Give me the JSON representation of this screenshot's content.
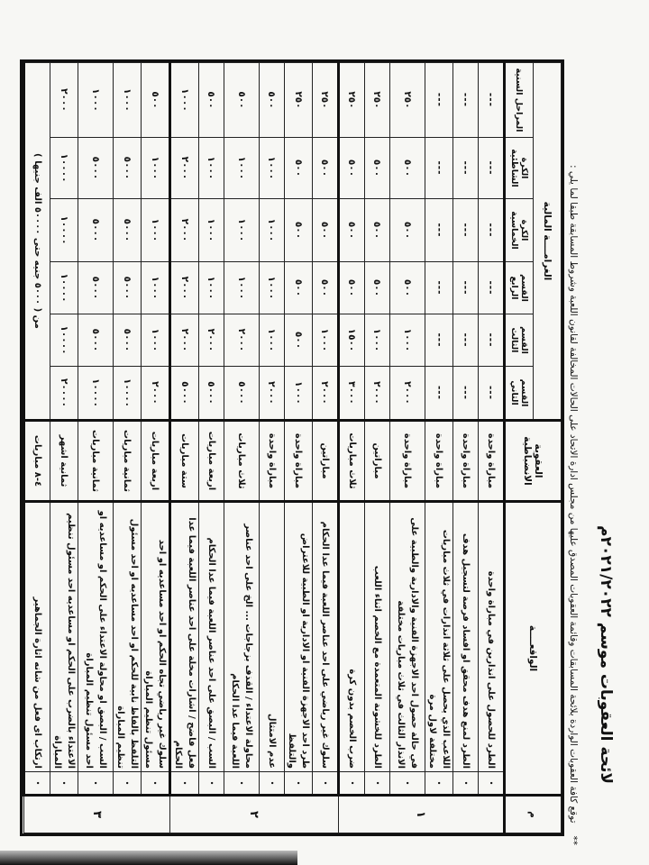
{
  "document": {
    "title": "لائحة العقوبات موسم ٢٠٢١/٢٠٢٢م",
    "subtitle_marker": "**",
    "subtitle": "توقع كافة العقوبات الواردة بلائحة المسابقات وقائمة العقوبات المصدق عليها من مجلس ادارة الاتحاد على الحالات المخالفة لقانون اللعبة وشروط المسابقة طبقا لما يلي :"
  },
  "table": {
    "headers": {
      "number": "م",
      "incident": "الواقعــــة",
      "penalty": "العقوبة الانضباطية",
      "fine": "الغرامــــة المالية",
      "fine_columns": [
        "القسم الثاني",
        "القسم الثالث",
        "القسم الرابع",
        "الكرة الخماسية",
        "الكرة الشاطئية",
        "المراحل السنية"
      ]
    },
    "bullet": "•",
    "sections": [
      {
        "number": "١",
        "rows": [
          {
            "incident": "الطرد للحصول على انذارين في مباراة واحدة",
            "penalty": "مباراة واحدة",
            "fines": [
              "---",
              "---",
              "---",
              "---",
              "---",
              "---"
            ]
          },
          {
            "incident": "الطرد لمنع هدف محقق او افساد فرصة لتسجيل هدف",
            "penalty": "مباراة واحدة",
            "fines": [
              "---",
              "---",
              "---",
              "---",
              "---",
              "---"
            ]
          },
          {
            "incident": "اللاعب الذي يحصل على ثلاثة انذارات في ثلاث مباريات مختلفة لاول مرة",
            "penalty": "مباراة واحدة",
            "fines": [
              "---",
              "---",
              "---",
              "---",
              "---",
              "---"
            ]
          },
          {
            "incident": "في حالة حصول احد الاجهزة الفنية والادارية والطبية على الانذار الثالث في ثلاث مباريات مختلفة",
            "penalty": "مباراة واحدة",
            "fines": [
              "٢٠٠٠",
              "١٠٠٠",
              "٥٠٠",
              "٥٠٠",
              "٥٠٠",
              "٢٥٠"
            ],
            "two_line": true
          },
          {
            "incident": "الطرد للخشونة المتعمدة مع الخصم اثناء اللعب",
            "penalty": "مباراتين",
            "fines": [
              "٢٠٠٠",
              "١٠٠٠",
              "٥٠٠",
              "٥٠٠",
              "٥٠٠",
              "٢٥٠"
            ]
          },
          {
            "incident": "ضرب الخصم بدون كرة",
            "penalty": "ثلاث مباريات",
            "fines": [
              "٣٠٠٠",
              "١٥٠٠",
              "٥٠٠",
              "٥٠٠",
              "٥٠٠",
              "٢٥٠"
            ]
          }
        ]
      },
      {
        "number": "٢",
        "rows": [
          {
            "incident": "سلوك غير رياضي على احد عناصر اللعبة فيما عدا الحكام",
            "penalty": "مباراتين",
            "fines": [
              "٢٠٠٠",
              "١٠٠٠",
              "٥٠٠",
              "٥٠٠",
              "٥٠٠",
              "٢٥٠"
            ]
          },
          {
            "incident": "طرد احد الاجهزة الفنية او الادارية او الطبية للاعتراض والتلفظ",
            "penalty": "مباراة واحدة",
            "fines": [
              "١٠٠٠",
              "٥٠٠",
              "٥٠٠",
              "٥٠٠",
              "٥٠٠",
              "٢٥٠"
            ]
          },
          {
            "incident": "عدم الامتثال",
            "penalty": "مباراة واحدة",
            "fines": [
              "٢٠٠٠",
              "١٠٠٠",
              "١٠٠٠",
              "١٠٠٠",
              "١٠٠٠",
              "٥٠٠"
            ]
          },
          {
            "incident": "محاولة الاعتداء / القذف بزجاجات ... الخ على احد عناصر اللعبة فيما عدا الحكام",
            "penalty": "ثلاث مباريات",
            "fines": [
              "٥٠٠٠",
              "٢٠٠٠",
              "١٠٠٠",
              "١٠٠٠",
              "١٠٠٠",
              "٥٠٠"
            ],
            "two_line": true
          },
          {
            "incident": "السب / البصق على احد عناصر اللعبة فيما عدا الحكام",
            "penalty": "اربعة مباريات",
            "fines": [
              "٥٠٠٠",
              "٢٠٠٠",
              "١٠٠٠",
              "١٠٠٠",
              "١٠٠٠",
              "٥٠٠"
            ]
          },
          {
            "incident": "فعل فاضح / اشارات مخلة على احد عناصر اللعبة فيما عدا الحكام",
            "penalty": "ستة مباريات",
            "fines": [
              "٥٠٠٠",
              "٢٠٠٠",
              "٢٠٠٠",
              "٢٠٠٠",
              "٢٠٠٠",
              "١٠٠٠"
            ]
          }
        ]
      },
      {
        "number": "٣",
        "rows": [
          {
            "incident": "سلوك غير رياضي تجاه الحكم او احد مساعديه او احد مسئول تنظيم المباراة",
            "penalty": "اربعة مباريات",
            "fines": [
              "٢٠٠٠",
              "١٠٠٠",
              "١٠٠٠",
              "١٠٠٠",
              "١٠٠٠",
              "٥٠٠"
            ]
          },
          {
            "incident": "التلفظ بالفاظ نابية للحكم او احد مساعديه او احد مسئول تنظيم المباراة",
            "penalty": "ثمانية مباريات",
            "fines": [
              "١٠٠٠٠",
              "٥٠٠٠",
              "٥٠٠٠",
              "٥٠٠٠",
              "٥٠٠٠",
              "١٠٠٠"
            ]
          },
          {
            "incident": "السب / البصق او محاولة الاعتداء على الحكم او مساعديه او احد مسئول تنظيم المباراة",
            "penalty": "ثمانية مباريات",
            "fines": [
              "١٠٠٠٠",
              "٥٠٠٠",
              "٥٠٠٠",
              "٥٠٠٠",
              "٥٠٠٠",
              "١٠٠٠"
            ],
            "two_line": true
          },
          {
            "incident": "الاعتداء بالضرب على الحكم او مساعديه احد مسئول تنظيم المباراة",
            "penalty": "ثمانية اشهر",
            "fines": [
              "٢٠٠٠٠",
              "١٠٠٠٠",
              "١٠٠٠٠",
              "١٠٠٠٠",
              "١٠٠٠٠",
              "٢٠٠٠"
            ]
          },
          {
            "incident": "ارتكاب اى فعل من شانه اثارة الجماهير",
            "penalty": "٤-٨ مباريات",
            "fine_range": "من ( ٥٠٠٠ جنيه حتى ٥٠٠٠٠ الف جنيها )"
          }
        ]
      }
    ]
  }
}
